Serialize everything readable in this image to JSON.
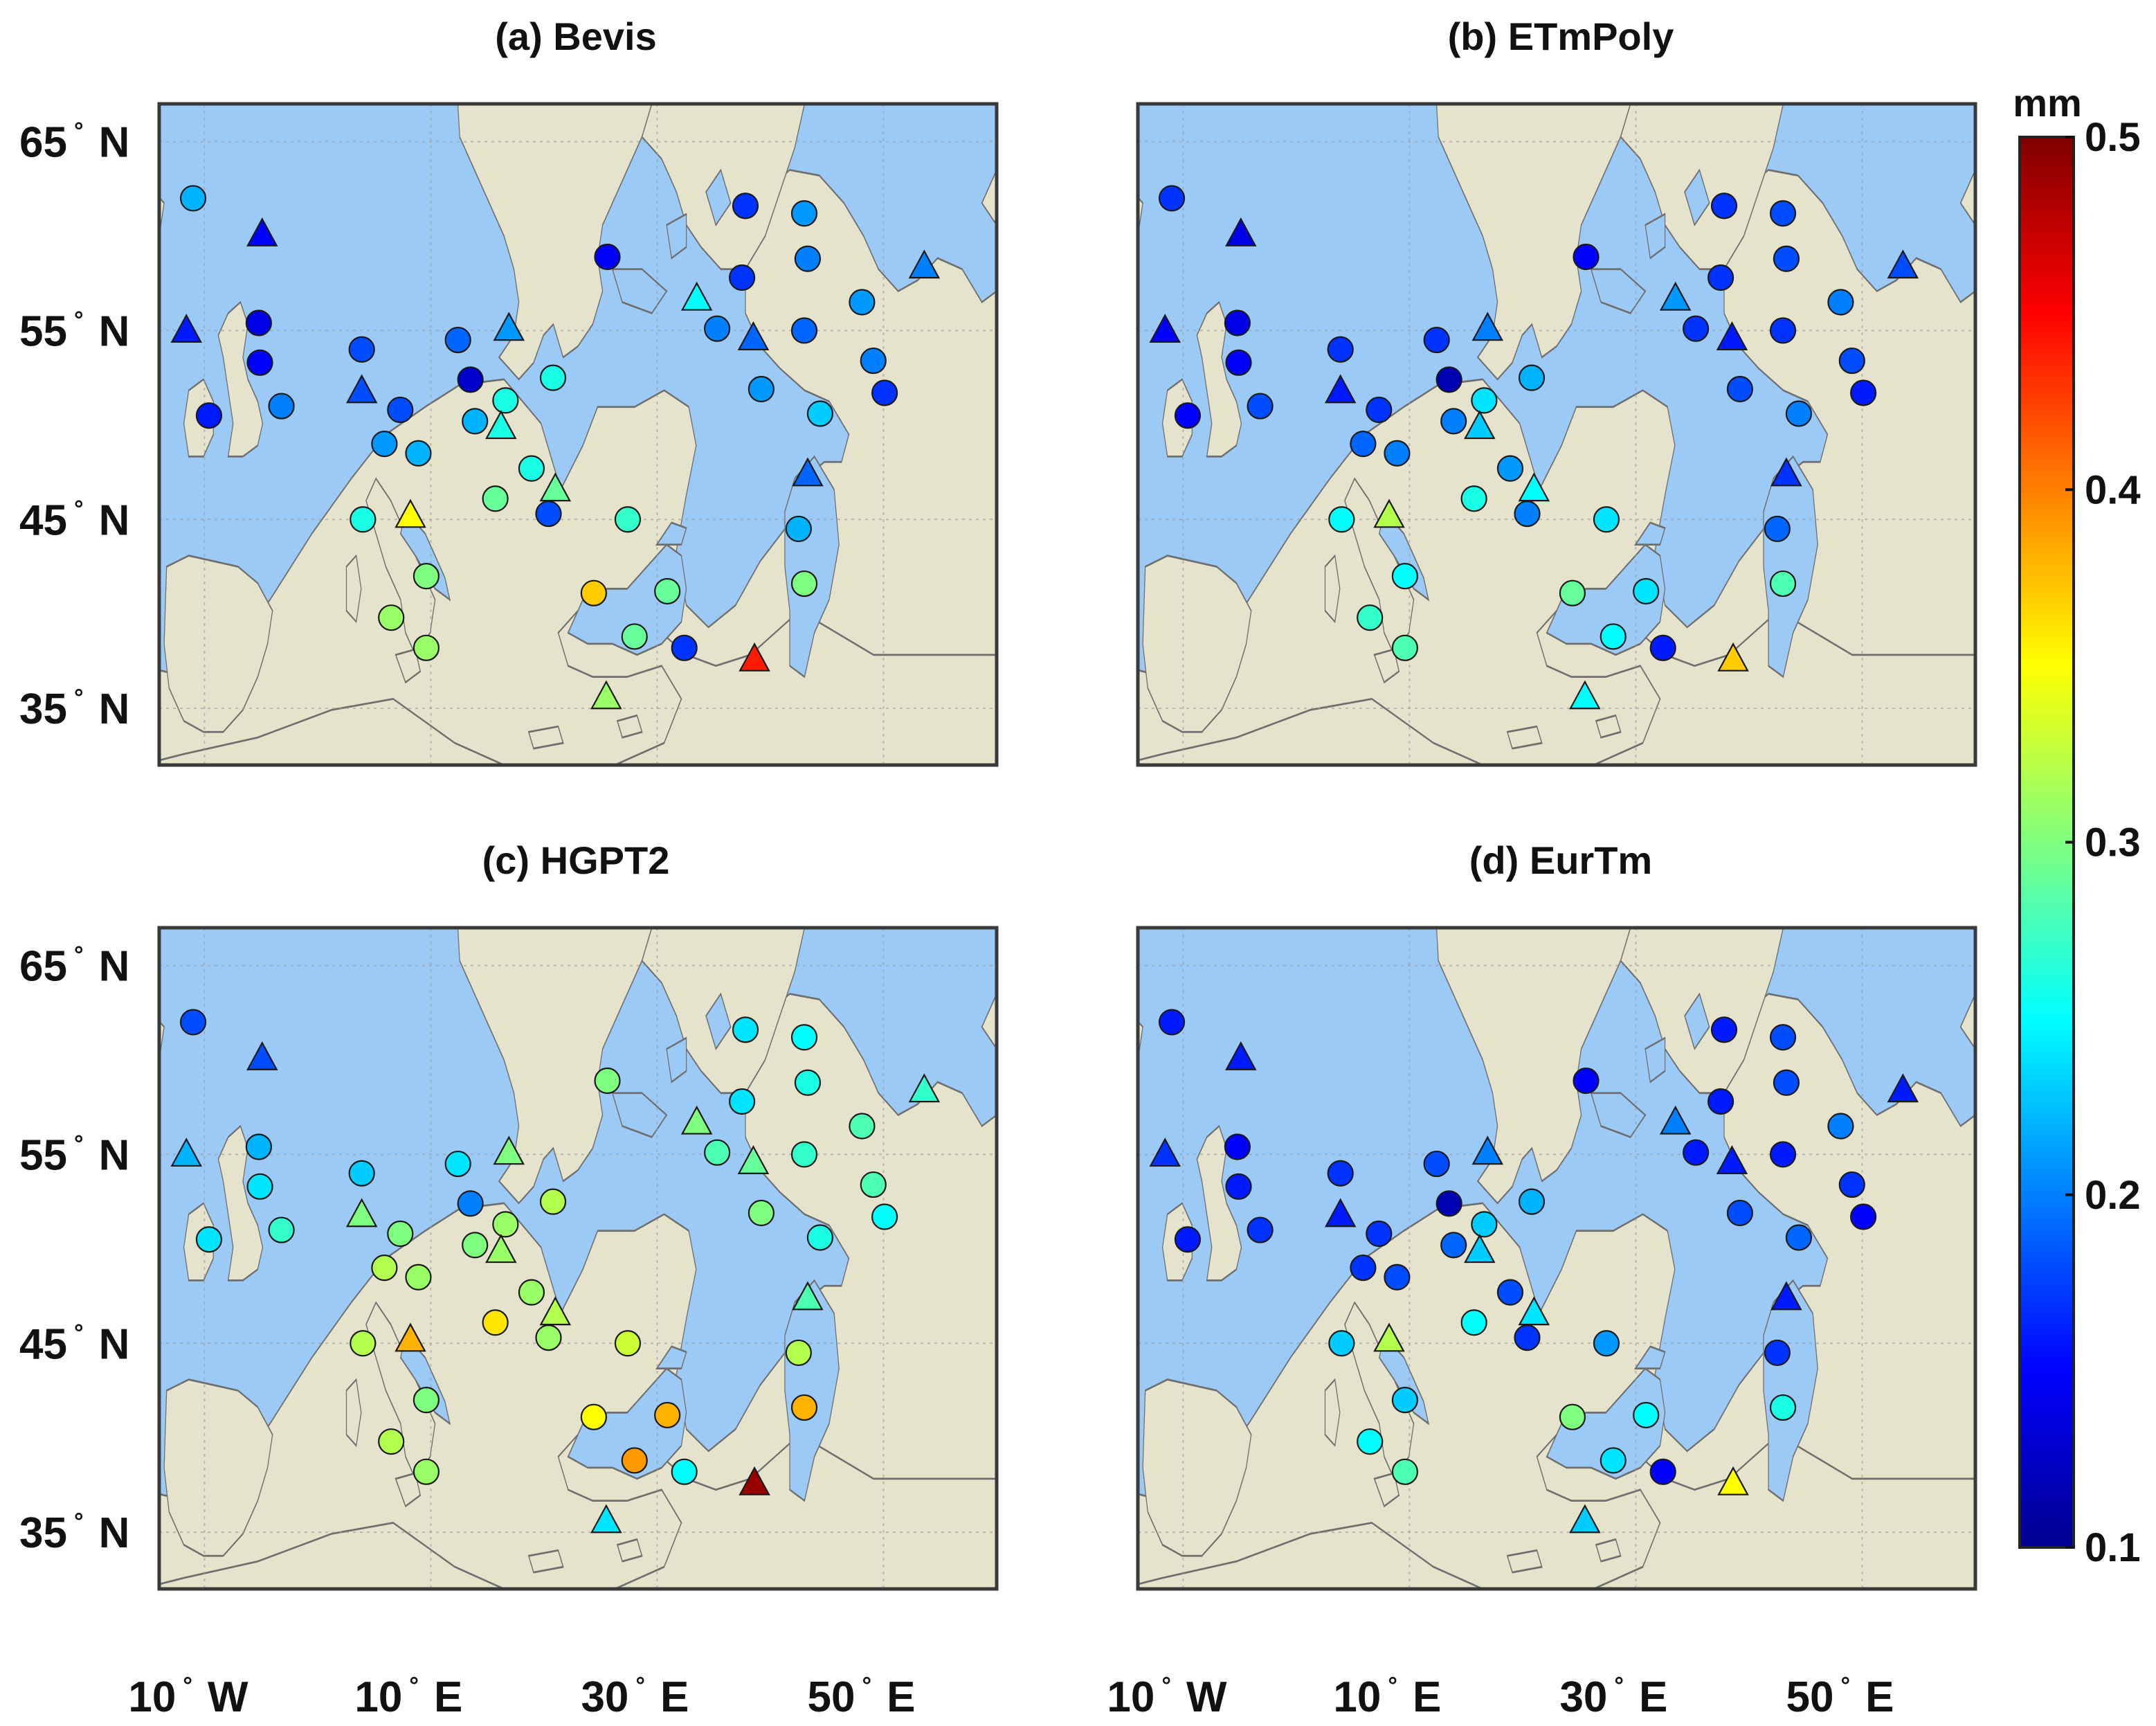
{
  "colorbar": {
    "unit": "mm",
    "min": 0.1,
    "max": 0.5,
    "ticks": [
      "0.1",
      "0.2",
      "0.3",
      "0.4",
      "0.5"
    ],
    "tick_values": [
      0.1,
      0.2,
      0.3,
      0.4,
      0.5
    ],
    "colormap": "jet"
  },
  "map": {
    "lon_range": [
      -14,
      60
    ],
    "lat_range": [
      32,
      67
    ],
    "land_color": "#e5e3cc",
    "sea_color": "#9ccaf7",
    "lat_labels": [
      "65",
      "55",
      "45",
      "35"
    ],
    "lat_values": [
      65,
      55,
      45,
      35
    ],
    "lat_suffix": "N",
    "lon_labels": [
      "10",
      "10",
      "30",
      "50"
    ],
    "lon_values": [
      -10,
      10,
      30,
      50
    ],
    "lon_suffixes": [
      "W",
      "E",
      "E",
      "E"
    ]
  },
  "stations": [
    {
      "lon": -11.0,
      "lat": 62.0,
      "type": "circle"
    },
    {
      "lon": -4.9,
      "lat": 60.1,
      "type": "triangle"
    },
    {
      "lon": -11.6,
      "lat": 55.0,
      "type": "triangle"
    },
    {
      "lon": -5.2,
      "lat": 55.4,
      "type": "circle"
    },
    {
      "lon": -5.1,
      "lat": 53.3,
      "type": "circle"
    },
    {
      "lon": -9.6,
      "lat": 50.5,
      "type": "circle"
    },
    {
      "lon": -3.2,
      "lat": 51.0,
      "type": "circle"
    },
    {
      "lon": 3.9,
      "lat": 54.0,
      "type": "circle"
    },
    {
      "lon": 3.9,
      "lat": 51.8,
      "type": "triangle"
    },
    {
      "lon": 7.3,
      "lat": 50.8,
      "type": "circle"
    },
    {
      "lon": 12.4,
      "lat": 54.5,
      "type": "circle"
    },
    {
      "lon": 16.9,
      "lat": 55.1,
      "type": "triangle"
    },
    {
      "lon": 13.5,
      "lat": 52.4,
      "type": "circle"
    },
    {
      "lon": 16.6,
      "lat": 51.3,
      "type": "circle"
    },
    {
      "lon": 20.8,
      "lat": 52.5,
      "type": "circle"
    },
    {
      "lon": 13.9,
      "lat": 50.2,
      "type": "circle"
    },
    {
      "lon": 16.2,
      "lat": 49.9,
      "type": "triangle"
    },
    {
      "lon": 5.9,
      "lat": 49.0,
      "type": "circle"
    },
    {
      "lon": 8.9,
      "lat": 48.5,
      "type": "circle"
    },
    {
      "lon": 18.9,
      "lat": 47.7,
      "type": "circle"
    },
    {
      "lon": 21.0,
      "lat": 46.6,
      "type": "triangle"
    },
    {
      "lon": 15.7,
      "lat": 46.1,
      "type": "circle"
    },
    {
      "lon": 20.4,
      "lat": 45.3,
      "type": "circle"
    },
    {
      "lon": 4.0,
      "lat": 45.0,
      "type": "circle"
    },
    {
      "lon": 8.2,
      "lat": 45.2,
      "type": "triangle"
    },
    {
      "lon": 9.6,
      "lat": 42.0,
      "type": "circle"
    },
    {
      "lon": 6.5,
      "lat": 39.8,
      "type": "circle"
    },
    {
      "lon": 9.6,
      "lat": 38.2,
      "type": "circle"
    },
    {
      "lon": 27.4,
      "lat": 45.0,
      "type": "circle"
    },
    {
      "lon": 24.4,
      "lat": 41.1,
      "type": "circle"
    },
    {
      "lon": 28.0,
      "lat": 38.8,
      "type": "circle"
    },
    {
      "lon": 30.9,
      "lat": 41.2,
      "type": "circle"
    },
    {
      "lon": 32.4,
      "lat": 38.2,
      "type": "circle"
    },
    {
      "lon": 25.5,
      "lat": 35.6,
      "type": "triangle"
    },
    {
      "lon": 38.6,
      "lat": 37.6,
      "type": "triangle"
    },
    {
      "lon": 43.0,
      "lat": 41.6,
      "type": "circle"
    },
    {
      "lon": 42.5,
      "lat": 44.5,
      "type": "circle"
    },
    {
      "lon": 43.3,
      "lat": 47.4,
      "type": "triangle"
    },
    {
      "lon": 25.6,
      "lat": 58.9,
      "type": "circle"
    },
    {
      "lon": 37.8,
      "lat": 61.6,
      "type": "circle"
    },
    {
      "lon": 43.0,
      "lat": 61.2,
      "type": "circle"
    },
    {
      "lon": 43.3,
      "lat": 58.8,
      "type": "circle"
    },
    {
      "lon": 37.5,
      "lat": 57.8,
      "type": "circle"
    },
    {
      "lon": 33.5,
      "lat": 56.7,
      "type": "triangle"
    },
    {
      "lon": 35.3,
      "lat": 55.1,
      "type": "circle"
    },
    {
      "lon": 38.5,
      "lat": 54.6,
      "type": "triangle"
    },
    {
      "lon": 43.0,
      "lat": 55.0,
      "type": "circle"
    },
    {
      "lon": 48.1,
      "lat": 56.5,
      "type": "circle"
    },
    {
      "lon": 49.1,
      "lat": 53.4,
      "type": "circle"
    },
    {
      "lon": 50.1,
      "lat": 51.7,
      "type": "circle"
    },
    {
      "lon": 39.2,
      "lat": 51.9,
      "type": "circle"
    },
    {
      "lon": 44.4,
      "lat": 50.6,
      "type": "circle"
    },
    {
      "lon": 53.6,
      "lat": 58.4,
      "type": "triangle"
    }
  ],
  "panels": [
    {
      "title": "(a) Bevis",
      "values": [
        0.22,
        0.15,
        0.16,
        0.14,
        0.15,
        0.16,
        0.2,
        0.18,
        0.18,
        0.18,
        0.19,
        0.21,
        0.13,
        0.26,
        0.26,
        0.22,
        0.26,
        0.21,
        0.22,
        0.26,
        0.29,
        0.29,
        0.18,
        0.26,
        0.35,
        0.3,
        0.31,
        0.31,
        0.27,
        0.37,
        0.29,
        0.29,
        0.17,
        0.31,
        0.44,
        0.3,
        0.22,
        0.19,
        0.15,
        0.17,
        0.21,
        0.2,
        0.17,
        0.25,
        0.2,
        0.19,
        0.19,
        0.21,
        0.2,
        0.17,
        0.21,
        0.23,
        0.2
      ]
    },
    {
      "title": "(b) ETmPoly",
      "values": [
        0.17,
        0.14,
        0.15,
        0.14,
        0.15,
        0.15,
        0.18,
        0.17,
        0.16,
        0.17,
        0.17,
        0.2,
        0.12,
        0.24,
        0.22,
        0.2,
        0.23,
        0.19,
        0.2,
        0.21,
        0.25,
        0.26,
        0.2,
        0.25,
        0.32,
        0.25,
        0.27,
        0.28,
        0.24,
        0.29,
        0.25,
        0.24,
        0.16,
        0.25,
        0.37,
        0.28,
        0.19,
        0.17,
        0.15,
        0.17,
        0.18,
        0.18,
        0.17,
        0.21,
        0.17,
        0.16,
        0.17,
        0.2,
        0.18,
        0.16,
        0.18,
        0.2,
        0.18
      ]
    },
    {
      "title": "(c) HGPT2",
      "values": [
        0.18,
        0.18,
        0.22,
        0.22,
        0.24,
        0.24,
        0.27,
        0.23,
        0.3,
        0.3,
        0.24,
        0.3,
        0.2,
        0.31,
        0.32,
        0.3,
        0.31,
        0.32,
        0.31,
        0.31,
        0.32,
        0.36,
        0.31,
        0.32,
        0.38,
        0.3,
        0.32,
        0.31,
        0.33,
        0.35,
        0.39,
        0.38,
        0.25,
        0.24,
        0.49,
        0.38,
        0.32,
        0.28,
        0.3,
        0.24,
        0.25,
        0.26,
        0.24,
        0.3,
        0.28,
        0.29,
        0.27,
        0.28,
        0.28,
        0.25,
        0.3,
        0.26,
        0.27
      ]
    },
    {
      "title": "(d) EurTm",
      "values": [
        0.16,
        0.16,
        0.17,
        0.15,
        0.16,
        0.16,
        0.17,
        0.17,
        0.16,
        0.17,
        0.18,
        0.2,
        0.12,
        0.23,
        0.22,
        0.19,
        0.23,
        0.17,
        0.18,
        0.18,
        0.24,
        0.25,
        0.17,
        0.23,
        0.32,
        0.23,
        0.25,
        0.28,
        0.21,
        0.3,
        0.24,
        0.25,
        0.15,
        0.23,
        0.35,
        0.26,
        0.17,
        0.16,
        0.15,
        0.16,
        0.18,
        0.18,
        0.16,
        0.2,
        0.16,
        0.16,
        0.16,
        0.2,
        0.17,
        0.15,
        0.18,
        0.19,
        0.16
      ]
    }
  ]
}
